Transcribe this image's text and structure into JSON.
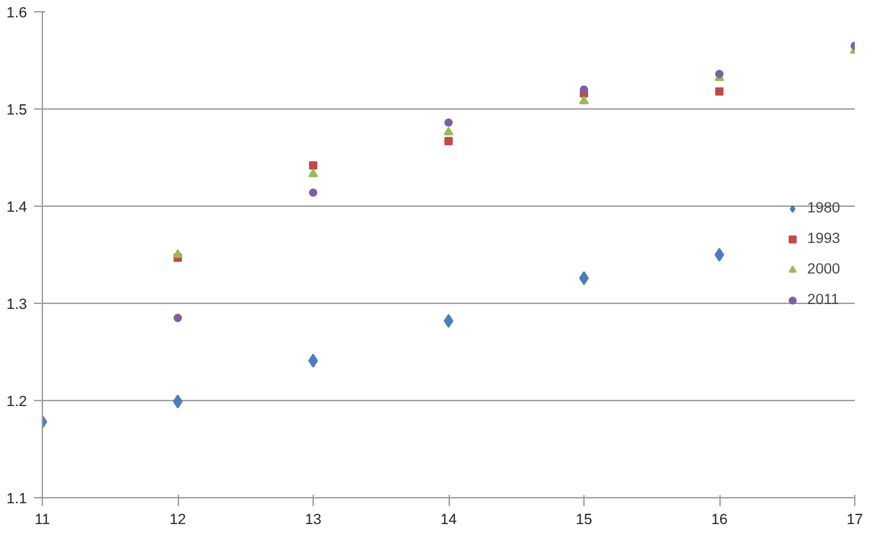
{
  "chart_data": {
    "type": "scatter",
    "xlim": [
      11,
      17
    ],
    "xticks": [
      11,
      12,
      13,
      14,
      15,
      16,
      17
    ],
    "ylim": [
      1.1,
      1.6
    ],
    "yticks": [
      1.1,
      1.2,
      1.3,
      1.4,
      1.5,
      1.6
    ],
    "grid": "y",
    "legend": "right",
    "series": [
      {
        "name": "1980",
        "color": "#4a7ebb",
        "marker": "diamond",
        "x": [
          11,
          12,
          13,
          14,
          15,
          16
        ],
        "values": [
          1.178,
          1.199,
          1.241,
          1.282,
          1.326,
          1.35
        ]
      },
      {
        "name": "1993",
        "color": "#be4b48",
        "marker": "square",
        "x": [
          12,
          13,
          14,
          15,
          16
        ],
        "values": [
          1.347,
          1.442,
          1.467,
          1.516,
          1.518
        ]
      },
      {
        "name": "2000",
        "color": "#98b954",
        "marker": "triangle",
        "x": [
          12,
          13,
          14,
          15,
          16,
          17
        ],
        "values": [
          1.35,
          1.433,
          1.476,
          1.508,
          1.532,
          1.56
        ]
      },
      {
        "name": "2011",
        "color": "#7d5fa0",
        "marker": "circle",
        "x": [
          12,
          13,
          14,
          15,
          16,
          17
        ],
        "values": [
          1.285,
          1.414,
          1.486,
          1.52,
          1.536,
          1.565
        ]
      }
    ]
  }
}
